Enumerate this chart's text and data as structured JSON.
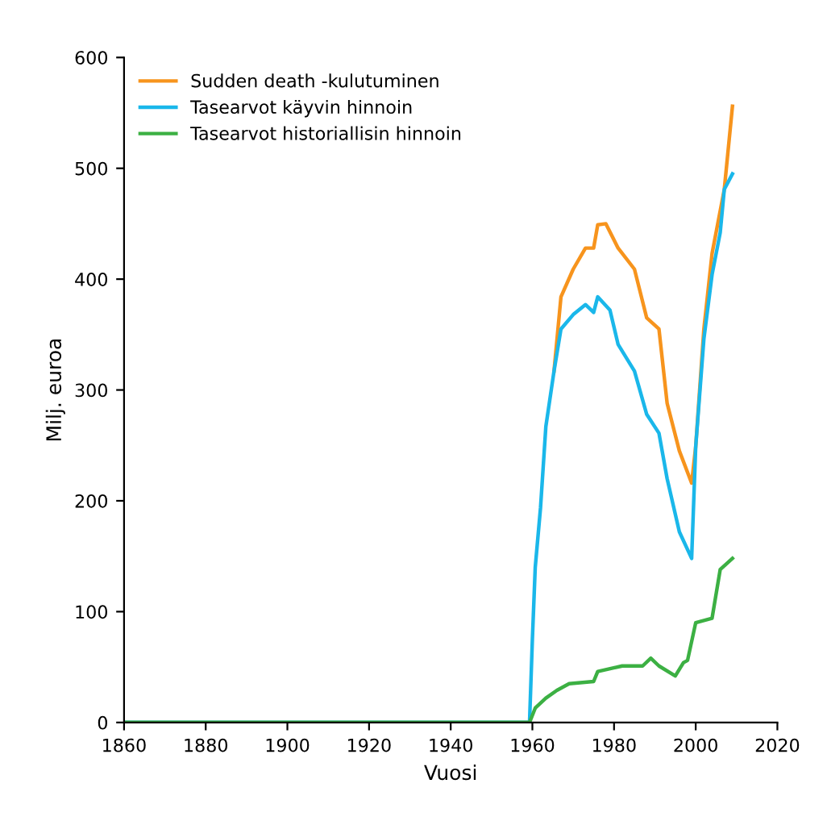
{
  "chart_data": {
    "type": "line",
    "xlabel": "Vuosi",
    "ylabel": "Milj. euroa",
    "xlim": [
      1860,
      2020
    ],
    "xticks": [
      1860,
      1880,
      1900,
      1920,
      1940,
      1960,
      1980,
      2000,
      2020
    ],
    "ylim": [
      0,
      600
    ],
    "yticks": [
      0,
      100,
      200,
      300,
      400,
      500,
      600
    ],
    "grid": false,
    "legend": "top left",
    "series": [
      {
        "name": "Sudden death -kulutuminen",
        "color": "#f7941d",
        "x": [
          1965.3,
          1967,
          1970,
          1973,
          1975,
          1976,
          1978,
          1981,
          1985,
          1988,
          1991,
          1993,
          1996,
          1999,
          2000,
          2002,
          2004,
          2007,
          2009
        ],
        "values": [
          317,
          384,
          409,
          428,
          428,
          449,
          450,
          428,
          409,
          365,
          355,
          288,
          245,
          216,
          249,
          355,
          423,
          481,
          556
        ]
      },
      {
        "name": "Tasearvot käyvin hinnoin",
        "color": "#1ab7ea",
        "x": [
          1860,
          1959.3,
          1960,
          1960.7,
          1962,
          1963.3,
          1965.3,
          1967,
          1970,
          1973,
          1975,
          1976,
          1979,
          1981,
          1985,
          1988,
          1991,
          1993,
          1996,
          1999,
          2000,
          2002,
          2004,
          2006,
          2007,
          2009
        ],
        "values": [
          0,
          0,
          75,
          140,
          194,
          267,
          317,
          355,
          368,
          377,
          370,
          384,
          372,
          341,
          317,
          278,
          261,
          220,
          172,
          148,
          249,
          346,
          404,
          442,
          481,
          495
        ]
      },
      {
        "name": "Tasearvot historiallisin hinnoin",
        "color": "#3cb043",
        "x": [
          1860,
          1959.3,
          1960.7,
          1963.3,
          1966,
          1969,
          1975,
          1976,
          1982,
          1987,
          1989,
          1991,
          1995,
          1997,
          1998,
          2000,
          2004,
          2006,
          2009
        ],
        "values": [
          0,
          0,
          13,
          22,
          29,
          35,
          37,
          46,
          51,
          51,
          58,
          51,
          42,
          54,
          56,
          90,
          94,
          138,
          148
        ]
      }
    ]
  }
}
